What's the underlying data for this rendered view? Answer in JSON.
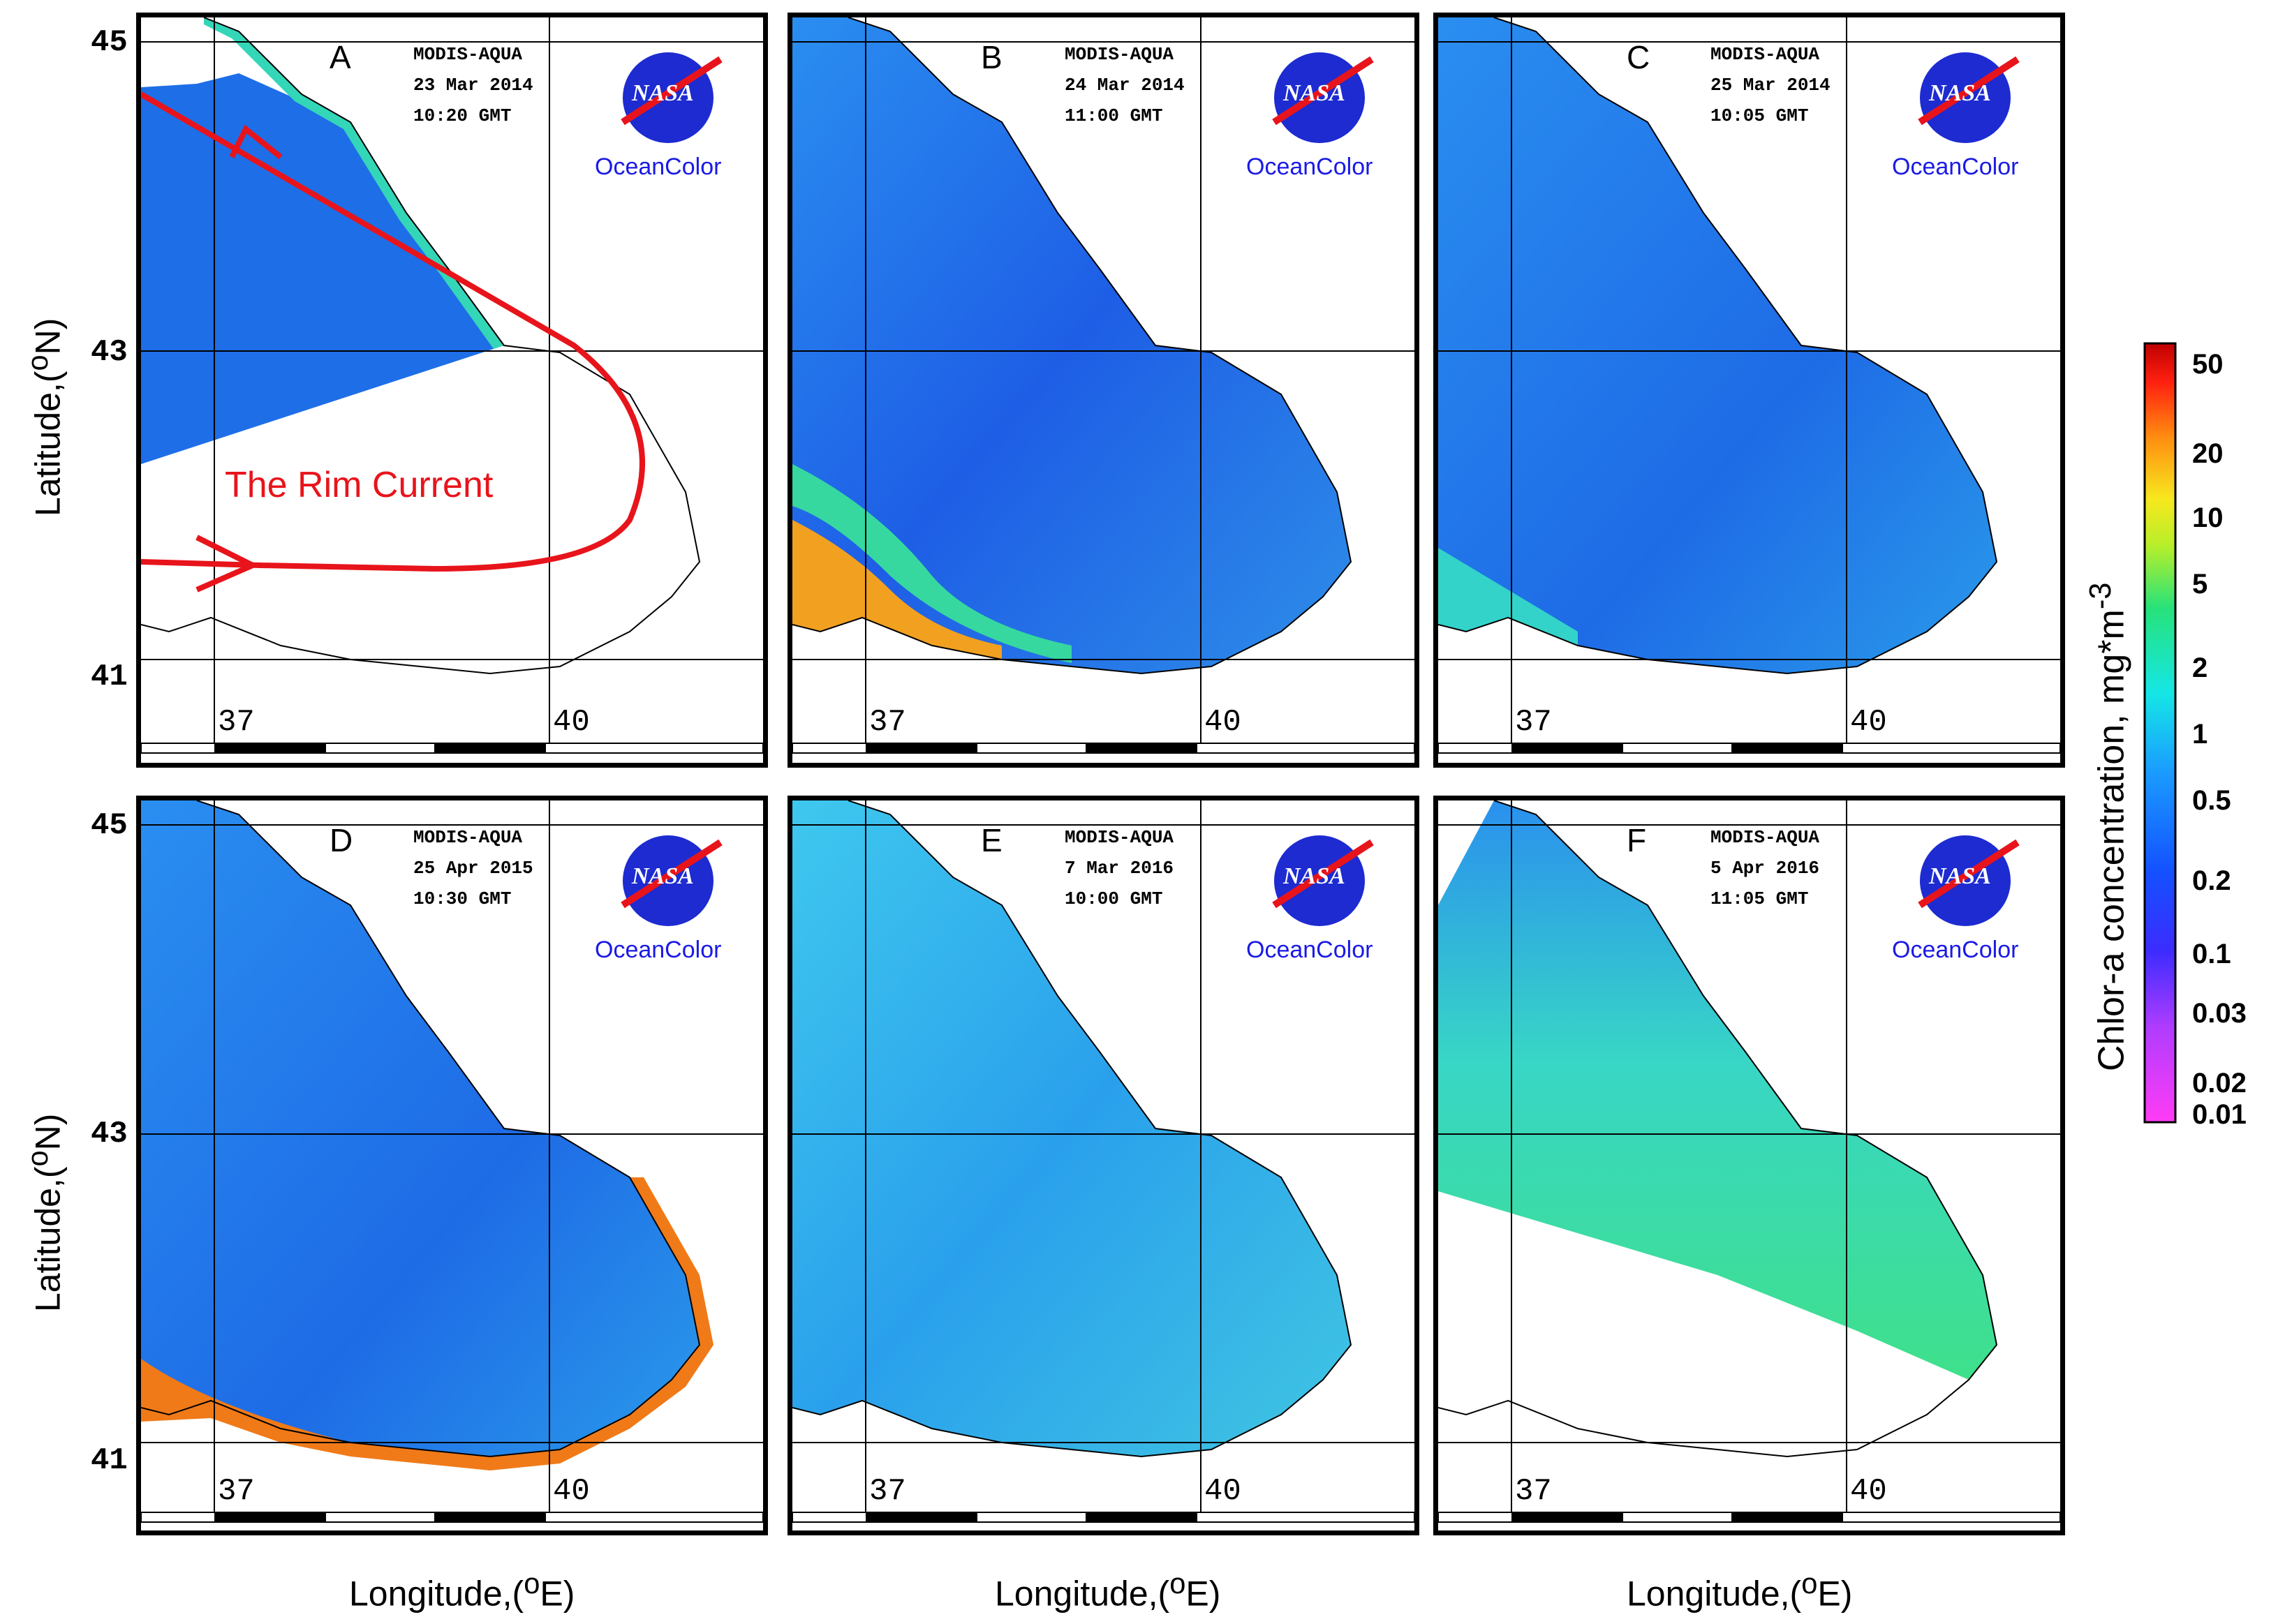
{
  "panels": [
    {
      "letter": "A",
      "satellite": "MODIS-AQUA",
      "date": "23 Mar 2014",
      "time": "10:20 GMT",
      "agency": "NASA",
      "logo_text": "OceanColor"
    },
    {
      "letter": "B",
      "satellite": "MODIS-AQUA",
      "date": "24 Mar 2014",
      "time": "11:00 GMT",
      "agency": "NASA",
      "logo_text": "OceanColor"
    },
    {
      "letter": "C",
      "satellite": "MODIS-AQUA",
      "date": "25 Mar 2014",
      "time": "10:05 GMT",
      "agency": "NASA",
      "logo_text": "OceanColor"
    },
    {
      "letter": "D",
      "satellite": "MODIS-AQUA",
      "date": "25 Apr 2015",
      "time": "10:30 GMT",
      "agency": "NASA",
      "logo_text": "OceanColor"
    },
    {
      "letter": "E",
      "satellite": "MODIS-AQUA",
      "date": "7 Mar 2016",
      "time": "10:00 GMT",
      "agency": "NASA",
      "logo_text": "OceanColor"
    },
    {
      "letter": "F",
      "satellite": "MODIS-AQUA",
      "date": "5 Apr 2016",
      "time": "11:05 GMT",
      "agency": "NASA",
      "logo_text": "OceanColor"
    }
  ],
  "axes": {
    "lat_ticks": [
      "45",
      "43",
      "41"
    ],
    "lon_ticks": [
      "37",
      "40"
    ],
    "ylabel": "Latitude,(",
    "ylabel_sup": "o",
    "ylabel_end": "N)",
    "xlabel": "Longitude,(",
    "xlabel_sup": "o",
    "xlabel_end": "E)"
  },
  "annotation": {
    "rim_current": "The Rim Current",
    "color": "#e8141b"
  },
  "colorbar": {
    "title": "Chlor-a concentration, mg*m",
    "title_sup": "-3",
    "ticks": [
      "50",
      "20",
      "10",
      "5",
      "2",
      "1",
      "0.5",
      "0.2",
      "0.1",
      "0.03",
      "0.02",
      "0.01"
    ]
  },
  "colors": {
    "sea_low": "#1e5cf0",
    "sea_mid": "#2aa9e8",
    "sea_high": "#39e0b0",
    "bloom": "#f2e020",
    "extreme": "#e63b14",
    "current": "#e8141b"
  }
}
